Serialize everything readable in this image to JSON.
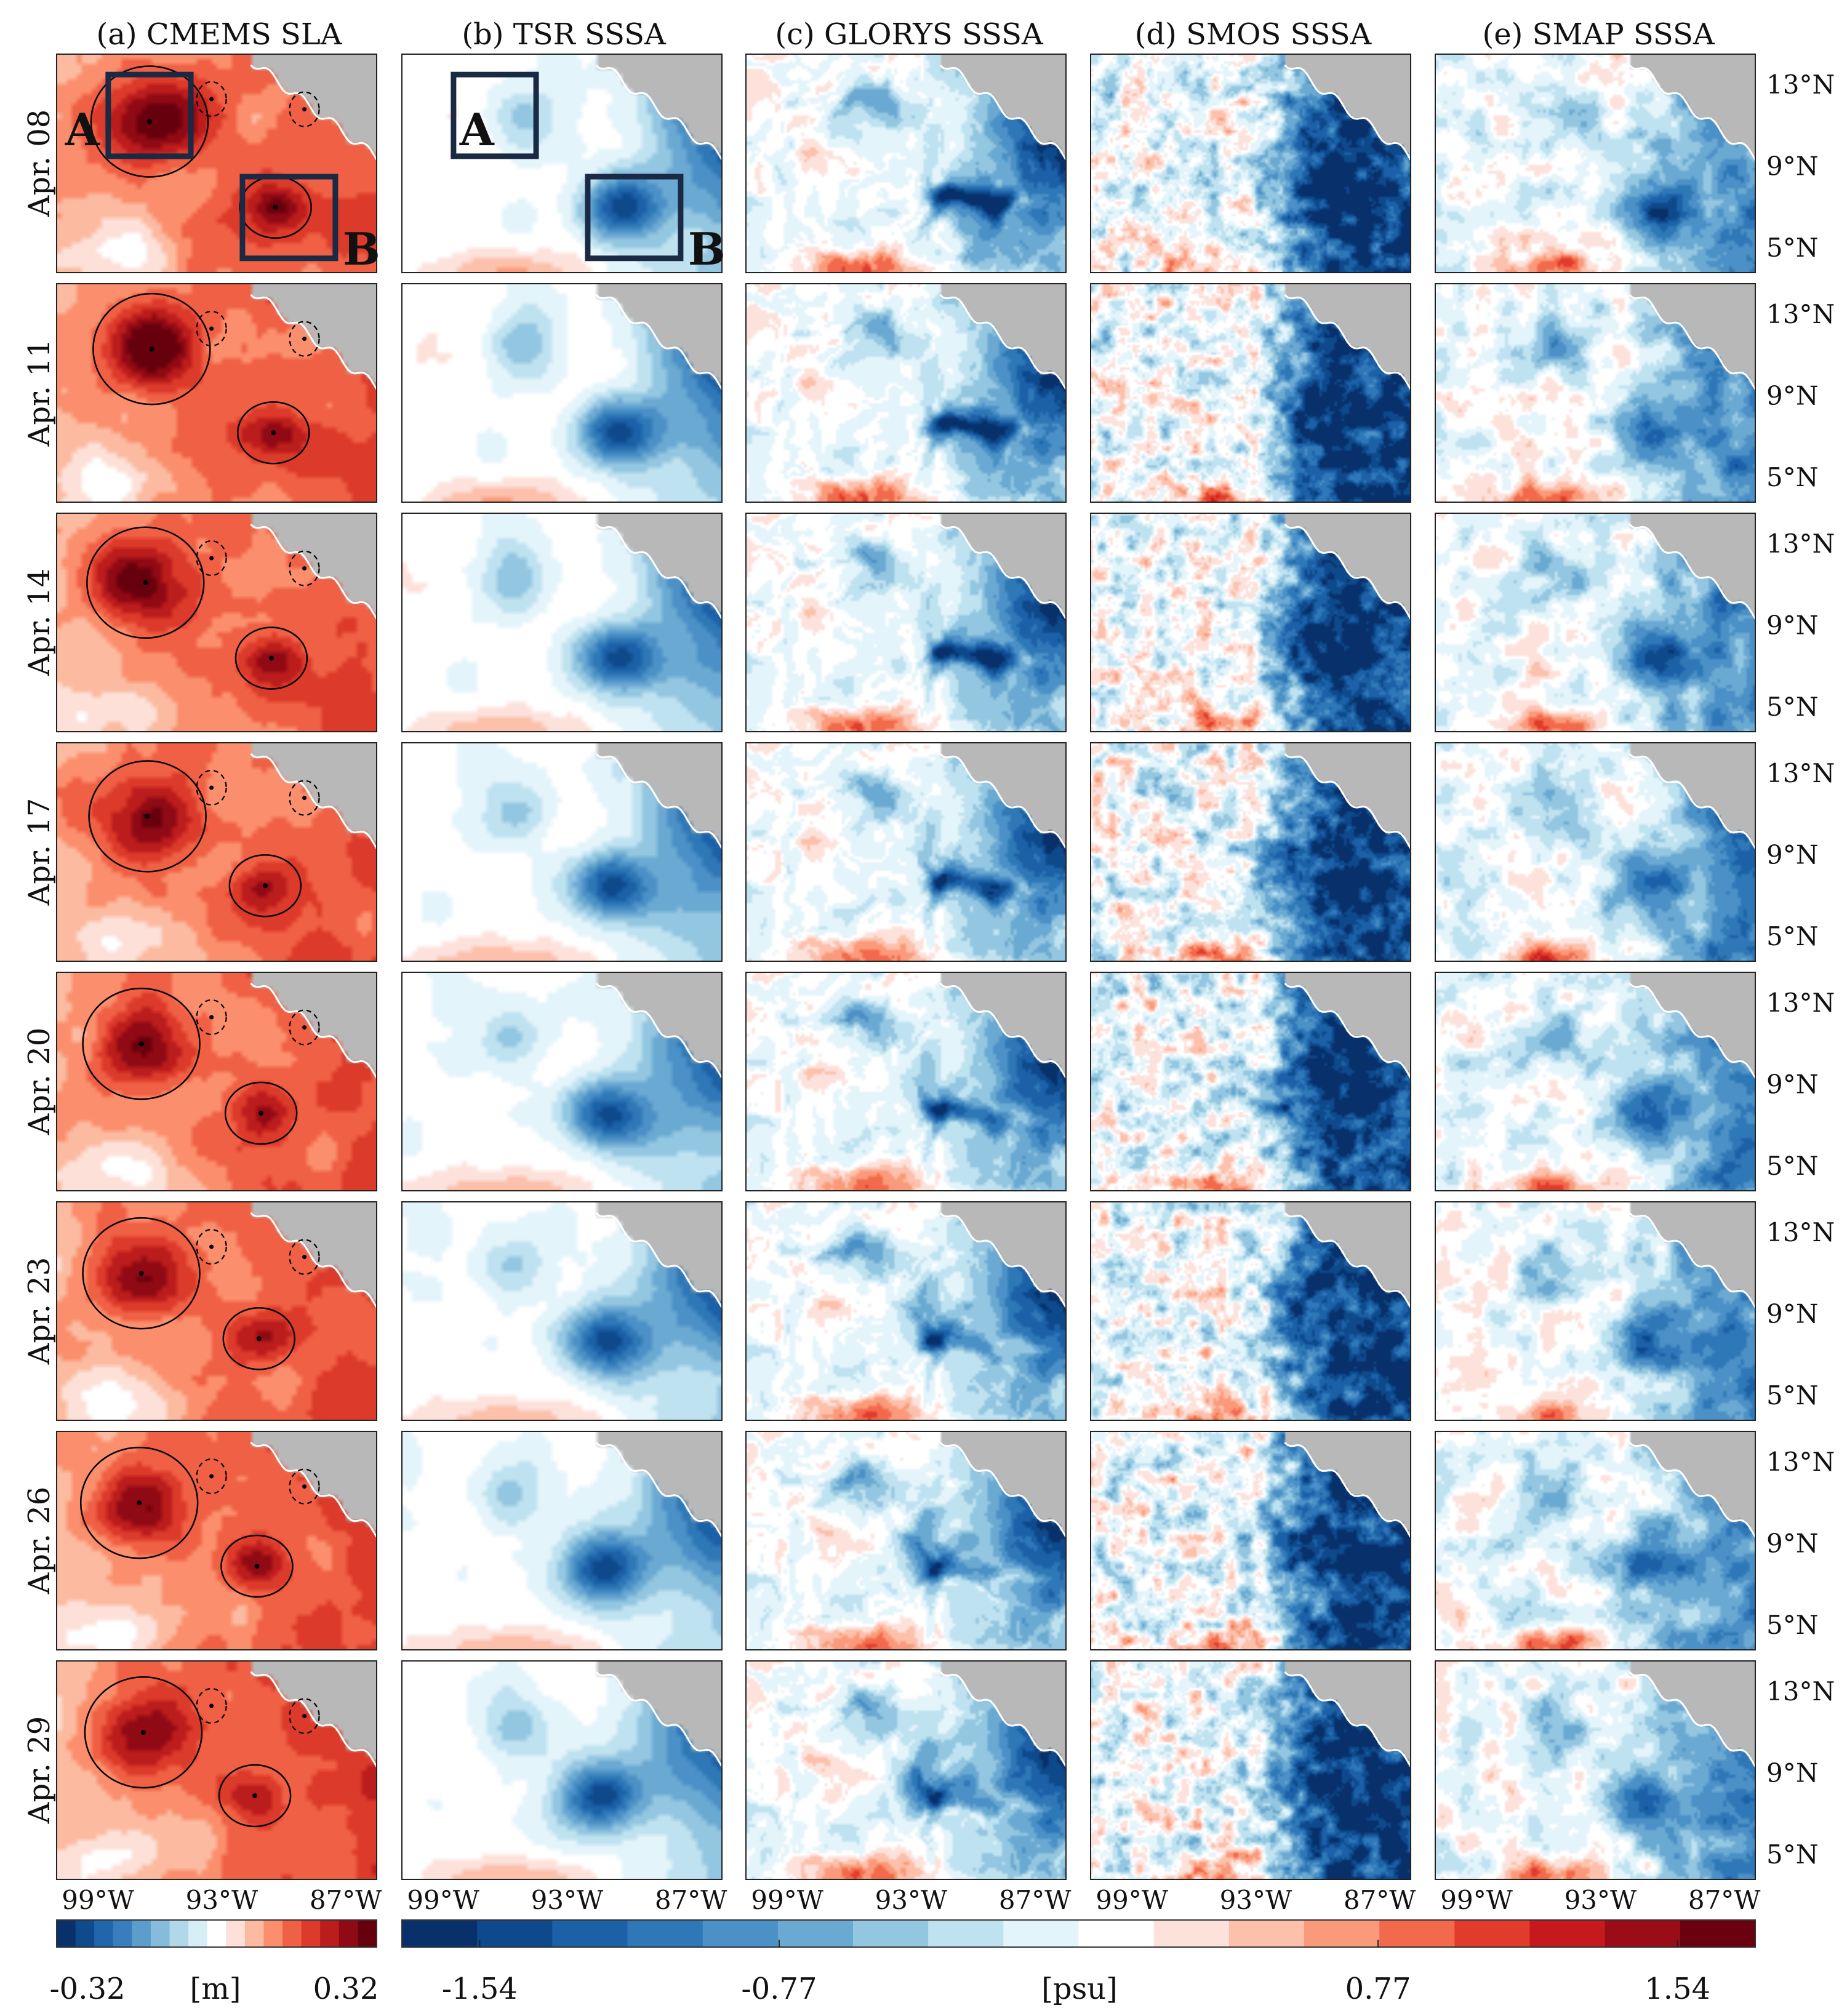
{
  "chart_data": {
    "type": "heatmap",
    "panels": [
      {
        "id": "a",
        "title": "(a) CMEMS SLA",
        "units": "[m]",
        "colorbar": "sla"
      },
      {
        "id": "b",
        "title": "(b) TSR SSSA",
        "units": "[psu]",
        "colorbar": "sss"
      },
      {
        "id": "c",
        "title": "(c) GLORYS SSSA",
        "units": "[psu]",
        "colorbar": "sss"
      },
      {
        "id": "d",
        "title": "(d) SMOS SSSA",
        "units": "[psu]",
        "colorbar": "sss"
      },
      {
        "id": "e",
        "title": "(e) SMAP SSSA",
        "units": "[psu]",
        "colorbar": "sss"
      }
    ],
    "dates": [
      "Apr. 08",
      "Apr. 11",
      "Apr. 14",
      "Apr. 17",
      "Apr. 20",
      "Apr. 23",
      "Apr. 26",
      "Apr. 29"
    ],
    "x_ticks": [
      "99°W",
      "93°W",
      "87°W"
    ],
    "x_tick_values": [
      -99,
      -93,
      -87
    ],
    "y_ticks": [
      "13°N",
      "9°N",
      "5°N"
    ],
    "y_tick_values": [
      13,
      9,
      5
    ],
    "xlim": [
      -101,
      -85.5
    ],
    "ylim": [
      3.8,
      14.5
    ],
    "box_labels": [
      "A",
      "B"
    ],
    "boxes": [
      {
        "name": "A",
        "lon": [
          -98.5,
          -94.5
        ],
        "lat": [
          9.5,
          13.5
        ]
      },
      {
        "name": "B",
        "lon": [
          -92,
          -87.5
        ],
        "lat": [
          4.5,
          8.5
        ]
      }
    ],
    "colorbars": {
      "sla": {
        "min": -0.32,
        "max": 0.32,
        "unit": "[m]",
        "tick_labels": [
          "-0.32",
          "0.32"
        ],
        "colors": [
          "#08306b",
          "#0f4a8a",
          "#2166ac",
          "#3a7dbd",
          "#5d9dcb",
          "#86bcdb",
          "#b1d8e8",
          "#d6eef6",
          "#ffffff",
          "#fde0d8",
          "#fcbba1",
          "#fb8f6d",
          "#f06045",
          "#dc3a2a",
          "#bb1c1c",
          "#8f0a14",
          "#67000d"
        ]
      },
      "sss": {
        "min": -1.74,
        "max": 1.74,
        "unit": "[psu]",
        "tick_labels": [
          "-1.54",
          "-0.77",
          "0.77",
          "1.54"
        ],
        "tick_values": [
          -1.54,
          -0.77,
          0.77,
          1.54
        ],
        "colors": [
          "#08306b",
          "#0e4a8b",
          "#1c61a8",
          "#2f78b7",
          "#4b90c6",
          "#6aa9d2",
          "#93c6e0",
          "#bfe2f0",
          "#e4f4fb",
          "#ffffff",
          "#fde2dc",
          "#fcc0ab",
          "#fb9a7a",
          "#f26a4b",
          "#e13b2c",
          "#c5191d",
          "#9b0d16",
          "#6b000e"
        ]
      }
    },
    "eddy_A_lat_lon": [
      [
        11.2,
        -96.5
      ],
      [
        11.3,
        -96.4
      ],
      [
        11.1,
        -96.7
      ],
      [
        10.9,
        -96.6
      ],
      [
        11.0,
        -96.9
      ],
      [
        11.0,
        -96.9
      ],
      [
        11.0,
        -97.0
      ],
      [
        11.0,
        -96.8
      ]
    ],
    "eddy_B_lat_lon": [
      [
        7.0,
        -90.4
      ],
      [
        7.2,
        -90.5
      ],
      [
        7.4,
        -90.6
      ],
      [
        7.5,
        -90.9
      ],
      [
        7.6,
        -91.1
      ],
      [
        7.8,
        -91.2
      ],
      [
        7.9,
        -91.3
      ],
      [
        7.9,
        -91.4
      ]
    ],
    "title": "",
    "xlabel": "",
    "ylabel": ""
  }
}
